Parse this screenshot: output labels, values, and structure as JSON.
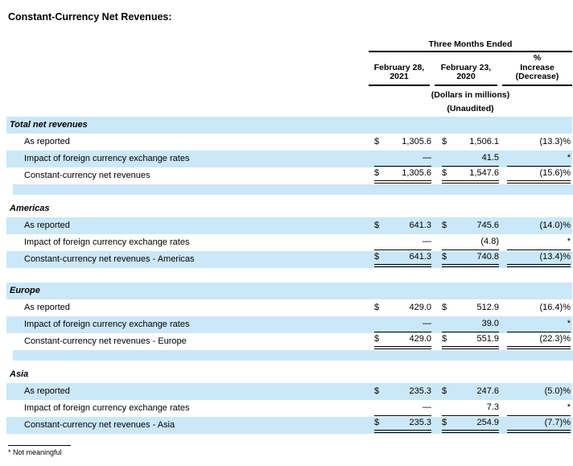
{
  "title": "Constant-Currency Net Revenues:",
  "colors": {
    "row_highlight": "#cbe8f8",
    "rule": "#000000"
  },
  "header": {
    "group": "Three Months Ended",
    "col1": {
      "l1": "February 28,",
      "l2": "2021"
    },
    "col2": {
      "l1": "February 23,",
      "l2": "2020"
    },
    "col3": {
      "l1": "%",
      "l2": "Increase",
      "l3": "(Decrease)"
    },
    "note1": "(Dollars in millions)",
    "note2": "(Unaudited)"
  },
  "sections": [
    {
      "name": "Total net revenues",
      "rows": [
        {
          "label": "As reported",
          "d1": "$",
          "v1": "1,305.6",
          "d2": "$",
          "v2": "1,506.1",
          "pct": "(13.3)%"
        },
        {
          "label": "Impact of foreign currency exchange rates",
          "d1": "",
          "v1": "—",
          "d2": "",
          "v2": "41.5",
          "pct": "*"
        },
        {
          "label": "Constant-currency net revenues",
          "d1": "$",
          "v1": "1,305.6",
          "d2": "$",
          "v2": "1,547.6",
          "pct": "(15.6)%"
        }
      ]
    },
    {
      "name": "Americas",
      "rows": [
        {
          "label": "As reported",
          "d1": "$",
          "v1": "641.3",
          "d2": "$",
          "v2": "745.6",
          "pct": "(14.0)%"
        },
        {
          "label": "Impact of foreign currency exchange rates",
          "d1": "",
          "v1": "—",
          "d2": "",
          "v2": "(4.8)",
          "pct": "*"
        },
        {
          "label": "Constant-currency net revenues - Americas",
          "d1": "$",
          "v1": "641.3",
          "d2": "$",
          "v2": "740.8",
          "pct": "(13.4)%"
        }
      ]
    },
    {
      "name": "Europe",
      "rows": [
        {
          "label": "As reported",
          "d1": "$",
          "v1": "429.0",
          "d2": "$",
          "v2": "512.9",
          "pct": "(16.4)%"
        },
        {
          "label": "Impact of foreign currency exchange rates",
          "d1": "",
          "v1": "—",
          "d2": "",
          "v2": "39.0",
          "pct": "*"
        },
        {
          "label": "Constant-currency net revenues - Europe",
          "d1": "$",
          "v1": "429.0",
          "d2": "$",
          "v2": "551.9",
          "pct": "(22.3)%"
        }
      ]
    },
    {
      "name": "Asia",
      "rows": [
        {
          "label": "As reported",
          "d1": "$",
          "v1": "235.3",
          "d2": "$",
          "v2": "247.6",
          "pct": "(5.0)%"
        },
        {
          "label": "Impact of foreign currency exchange rates",
          "d1": "",
          "v1": "—",
          "d2": "",
          "v2": "7.3",
          "pct": "*"
        },
        {
          "label": "Constant-currency net revenues - Asia",
          "d1": "$",
          "v1": "235.3",
          "d2": "$",
          "v2": "254.9",
          "pct": "(7.7)%"
        }
      ]
    }
  ],
  "footnote": "* Not meaningful"
}
